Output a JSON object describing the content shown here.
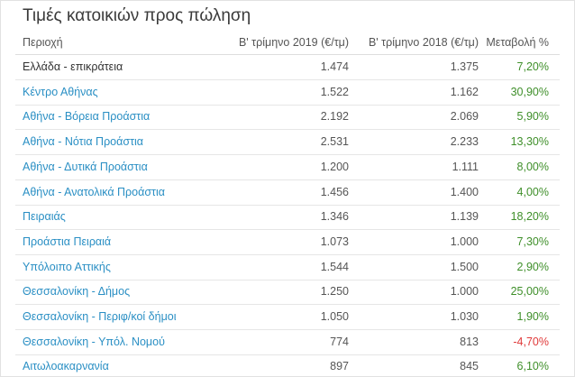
{
  "title": "Τιμές κατοικιών προς πώληση",
  "colors": {
    "link": "#2a8fc4",
    "positive": "#3f8f2a",
    "negative": "#e03a3a"
  },
  "columns": {
    "region": "Περιοχή",
    "q2_2019": "Β' τρίμηνο 2019 (€/τμ)",
    "q2_2018": "Β' τρίμηνο 2018 (€/τμ)",
    "change": "Μεταβολή %"
  },
  "rows": [
    {
      "region": "Ελλάδα - επικράτεια",
      "q2_2019": "1.474",
      "q2_2018": "1.375",
      "change": "7,20%",
      "is_link": false,
      "negative": false
    },
    {
      "region": "Κέντρο Αθήνας",
      "q2_2019": "1.522",
      "q2_2018": "1.162",
      "change": "30,90%",
      "is_link": true,
      "negative": false
    },
    {
      "region": "Αθήνα - Βόρεια Προάστια",
      "q2_2019": "2.192",
      "q2_2018": "2.069",
      "change": "5,90%",
      "is_link": true,
      "negative": false
    },
    {
      "region": "Αθήνα - Νότια Προάστια",
      "q2_2019": "2.531",
      "q2_2018": "2.233",
      "change": "13,30%",
      "is_link": true,
      "negative": false
    },
    {
      "region": "Αθήνα - Δυτικά Προάστια",
      "q2_2019": "1.200",
      "q2_2018": "1.111",
      "change": "8,00%",
      "is_link": true,
      "negative": false
    },
    {
      "region": "Αθήνα - Ανατολικά Προάστια",
      "q2_2019": "1.456",
      "q2_2018": "1.400",
      "change": "4,00%",
      "is_link": true,
      "negative": false
    },
    {
      "region": "Πειραιάς",
      "q2_2019": "1.346",
      "q2_2018": "1.139",
      "change": "18,20%",
      "is_link": true,
      "negative": false
    },
    {
      "region": "Προάστια Πειραιά",
      "q2_2019": "1.073",
      "q2_2018": "1.000",
      "change": "7,30%",
      "is_link": true,
      "negative": false
    },
    {
      "region": "Υπόλοιπο Αττικής",
      "q2_2019": "1.544",
      "q2_2018": "1.500",
      "change": "2,90%",
      "is_link": true,
      "negative": false
    },
    {
      "region": "Θεσσαλονίκη - Δήμος",
      "q2_2019": "1.250",
      "q2_2018": "1.000",
      "change": "25,00%",
      "is_link": true,
      "negative": false
    },
    {
      "region": "Θεσσαλονίκη - Περιφ/κοί δήμοι",
      "q2_2019": "1.050",
      "q2_2018": "1.030",
      "change": "1,90%",
      "is_link": true,
      "negative": false
    },
    {
      "region": "Θεσσαλονίκη - Υπόλ. Νομού",
      "q2_2019": "774",
      "q2_2018": "813",
      "change": "-4,70%",
      "is_link": true,
      "negative": true
    },
    {
      "region": "Αιτωλοακαρνανία",
      "q2_2019": "897",
      "q2_2018": "845",
      "change": "6,10%",
      "is_link": true,
      "negative": false
    }
  ]
}
